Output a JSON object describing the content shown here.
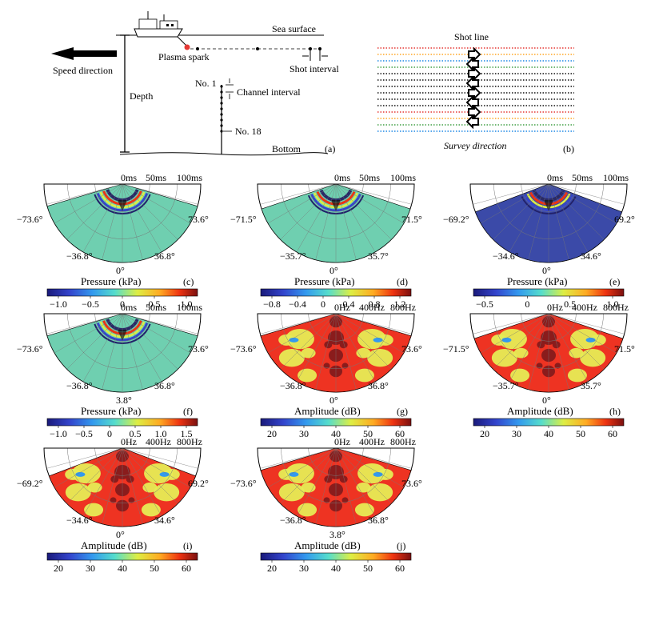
{
  "colors": {
    "seafloor_green": "#6fcfb0",
    "deep_blue": "#3b4aa8",
    "amp_red": "#ee3322",
    "amp_yellow": "#e6ec55",
    "amp_dark": "#8a1c1c",
    "ship_line_red": "#e53935",
    "ship_line_orange": "#ffa726",
    "ship_line_blue": "#1e88e5",
    "ship_line_green": "#43a047",
    "ship_line_black": "#111111"
  },
  "panel_a": {
    "sea_surface": "Sea surface",
    "speed_direction": "Speed direction",
    "plasma_spark": "Plasma spark",
    "shot_interval": "Shot interval",
    "depth": "Depth",
    "no1": "No. 1",
    "channel_interval": "Channel interval",
    "no18": "No. 18",
    "bottom": "Bottom",
    "letter": "(a)"
  },
  "panel_b": {
    "shot_line": "Shot line",
    "survey_direction": "Survey direction",
    "letter": "(b)"
  },
  "panels": [
    {
      "letter": "(c)",
      "time": [
        "0ms",
        "50ms",
        "100ms"
      ],
      "angle_left": "−73.6°",
      "angle_right": "73.6°",
      "angle_bl": "−36.8°",
      "angle_br": "36.8°",
      "angle_center": "0°",
      "title": "Pressure (kPa)",
      "ticks": [
        "−1.0",
        "−0.5",
        "0",
        "0.5",
        "1.0"
      ],
      "kind": "pressure",
      "bg": "green"
    },
    {
      "letter": "(d)",
      "time": [
        "0ms",
        "50ms",
        "100ms"
      ],
      "angle_left": "−71.5°",
      "angle_right": "71.5°",
      "angle_bl": "−35.7°",
      "angle_br": "35.7°",
      "angle_center": "0°",
      "title": "Pressure (kPa)",
      "ticks": [
        "−0.8",
        "−0.4",
        "0",
        "0.4",
        "0.8",
        "1.2"
      ],
      "kind": "pressure",
      "bg": "green"
    },
    {
      "letter": "(e)",
      "time": [
        "0ms",
        "50ms",
        "100ms"
      ],
      "angle_left": "−69.2°",
      "angle_right": "69.2°",
      "angle_bl": "−34.6°",
      "angle_br": "34.6°",
      "angle_center": "0°",
      "title": "Pressure (kPa)",
      "ticks": [
        "−0.5",
        "0",
        "0.5",
        "1.0"
      ],
      "kind": "pressure",
      "bg": "blue"
    },
    {
      "letter": "(f)",
      "time": [
        "0ms",
        "50ms",
        "100ms"
      ],
      "angle_left": "−73.6°",
      "angle_right": "73.6°",
      "angle_bl": "−36.8°",
      "angle_br": "36.8°",
      "angle_center": "3.8°",
      "title": "Pressure (kPa)",
      "ticks": [
        "−1.0",
        "−0.5",
        "0",
        "0.5",
        "1.0",
        "1.5"
      ],
      "kind": "pressure",
      "bg": "green"
    },
    {
      "letter": "(g)",
      "time": [
        "0Hz",
        "400Hz",
        "800Hz"
      ],
      "angle_left": "−73.6°",
      "angle_right": "73.6°",
      "angle_bl": "−36.8°",
      "angle_br": "36.8°",
      "angle_center": "0°",
      "title": "Amplitude (dB)",
      "ticks": [
        "20",
        "30",
        "40",
        "50",
        "60"
      ],
      "kind": "amplitude",
      "bg": "red"
    },
    {
      "letter": "(h)",
      "time": [
        "0Hz",
        "400Hz",
        "800Hz"
      ],
      "angle_left": "−71.5°",
      "angle_right": "71.5°",
      "angle_bl": "−35.7°",
      "angle_br": "35.7°",
      "angle_center": "0°",
      "title": "Amplitude (dB)",
      "ticks": [
        "20",
        "30",
        "40",
        "50",
        "60"
      ],
      "kind": "amplitude",
      "bg": "red"
    },
    {
      "letter": "(i)",
      "time": [
        "0Hz",
        "400Hz",
        "800Hz"
      ],
      "angle_left": "−69.2°",
      "angle_right": "69.2°",
      "angle_bl": "−34.6°",
      "angle_br": "34.6°",
      "angle_center": "0°",
      "title": "Amplitude (dB)",
      "ticks": [
        "20",
        "30",
        "40",
        "50",
        "60"
      ],
      "kind": "amplitude",
      "bg": "red"
    },
    {
      "letter": "(j)",
      "time": [
        "0Hz",
        "400Hz",
        "800Hz"
      ],
      "angle_left": "−73.6°",
      "angle_right": "73.6°",
      "angle_bl": "−36.8°",
      "angle_br": "36.8°",
      "angle_center": "3.8°",
      "title": "Amplitude (dB)",
      "ticks": [
        "20",
        "30",
        "40",
        "50",
        "60"
      ],
      "kind": "amplitude",
      "bg": "red"
    }
  ]
}
